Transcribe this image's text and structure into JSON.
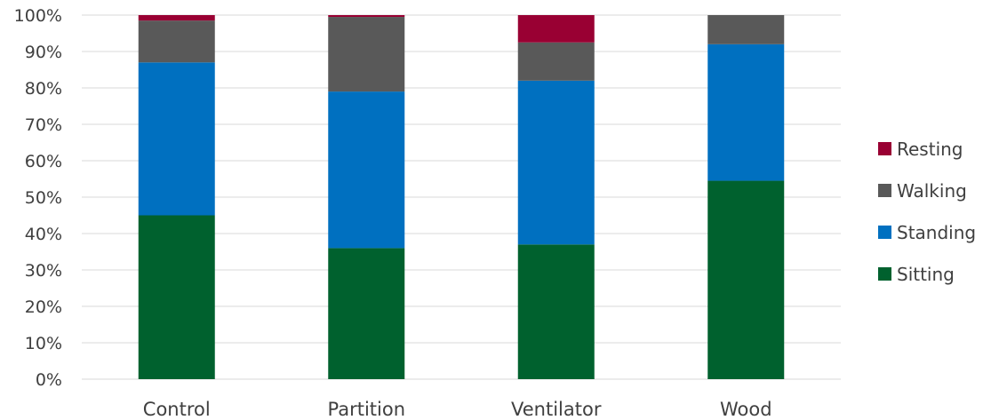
{
  "chart_data": {
    "type": "bar",
    "stacked": true,
    "normalized": true,
    "categories": [
      "Control",
      "Partition",
      "Ventilator",
      "Wood"
    ],
    "series": [
      {
        "name": "Sitting",
        "color": "#00612e",
        "values": [
          45.0,
          36.0,
          37.0,
          54.5
        ]
      },
      {
        "name": "Standing",
        "color": "#0070c0",
        "values": [
          42.0,
          43.0,
          45.0,
          37.5
        ]
      },
      {
        "name": "Walking",
        "color": "#595959",
        "values": [
          11.5,
          20.5,
          10.5,
          8.0
        ]
      },
      {
        "name": "Resting",
        "color": "#990033",
        "values": [
          1.5,
          0.5,
          7.5,
          0.0
        ]
      }
    ],
    "y_ticks": [
      "0%",
      "10%",
      "20%",
      "30%",
      "40%",
      "50%",
      "60%",
      "70%",
      "80%",
      "90%",
      "100%"
    ],
    "ylim": [
      0,
      100
    ],
    "grid": true,
    "legend_position": "right",
    "legend_order": [
      "Resting",
      "Walking",
      "Standing",
      "Sitting"
    ]
  }
}
